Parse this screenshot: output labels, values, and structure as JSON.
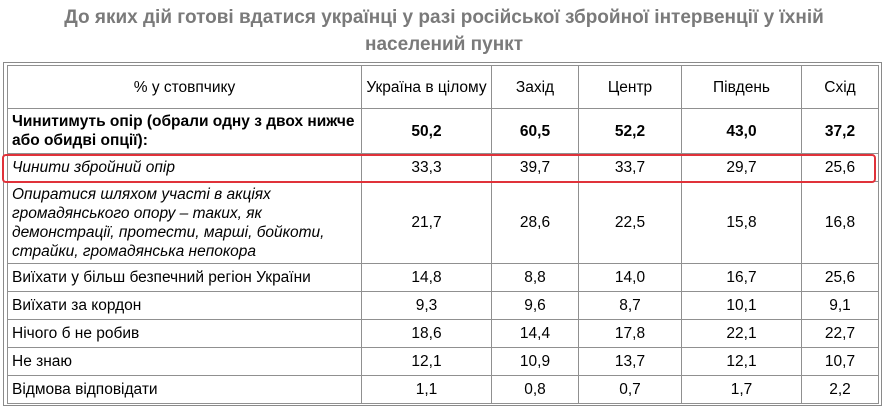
{
  "title": {
    "line1": "До яких дій готові вдатися українці у разі російської збройної інтервенції у їхній",
    "line2": "населений пункт"
  },
  "table": {
    "header": [
      "% у стовпчику",
      "Україна в цілому",
      "Захід",
      "Центр",
      "Південь",
      "Схід"
    ],
    "rows": [
      {
        "label": "Чинитимуть опір (обрали одну з двох нижче або обидві опції):",
        "values": [
          "50,2",
          "60,5",
          "52,2",
          "43,0",
          "37,2"
        ]
      },
      {
        "label": "Чинити збройний опір",
        "values": [
          "33,3",
          "39,7",
          "33,7",
          "29,7",
          "25,6"
        ]
      },
      {
        "label": "Опиратися шляхом участі в акціях громадянського опору – таких, як демонстрації, протести, марші, бойкоти, страйки, громадянська непокора",
        "values": [
          "21,7",
          "28,6",
          "22,5",
          "15,8",
          "16,8"
        ]
      },
      {
        "label": "Виїхати у більш безпечний регіон України",
        "values": [
          "14,8",
          "8,8",
          "14,0",
          "16,7",
          "25,6"
        ]
      },
      {
        "label": "Виїхати за кордон",
        "values": [
          "9,3",
          "9,6",
          "8,7",
          "10,1",
          "9,1"
        ]
      },
      {
        "label": "Нічого б не робив",
        "values": [
          "18,6",
          "14,4",
          "17,8",
          "22,1",
          "22,7"
        ]
      },
      {
        "label": "Не знаю",
        "values": [
          "12,1",
          "10,9",
          "13,7",
          "12,1",
          "10,7"
        ]
      },
      {
        "label": "Відмова відповідати",
        "values": [
          "1,1",
          "0,8",
          "0,7",
          "1,7",
          "2,2"
        ]
      }
    ]
  },
  "highlight_color": "#e0323a"
}
